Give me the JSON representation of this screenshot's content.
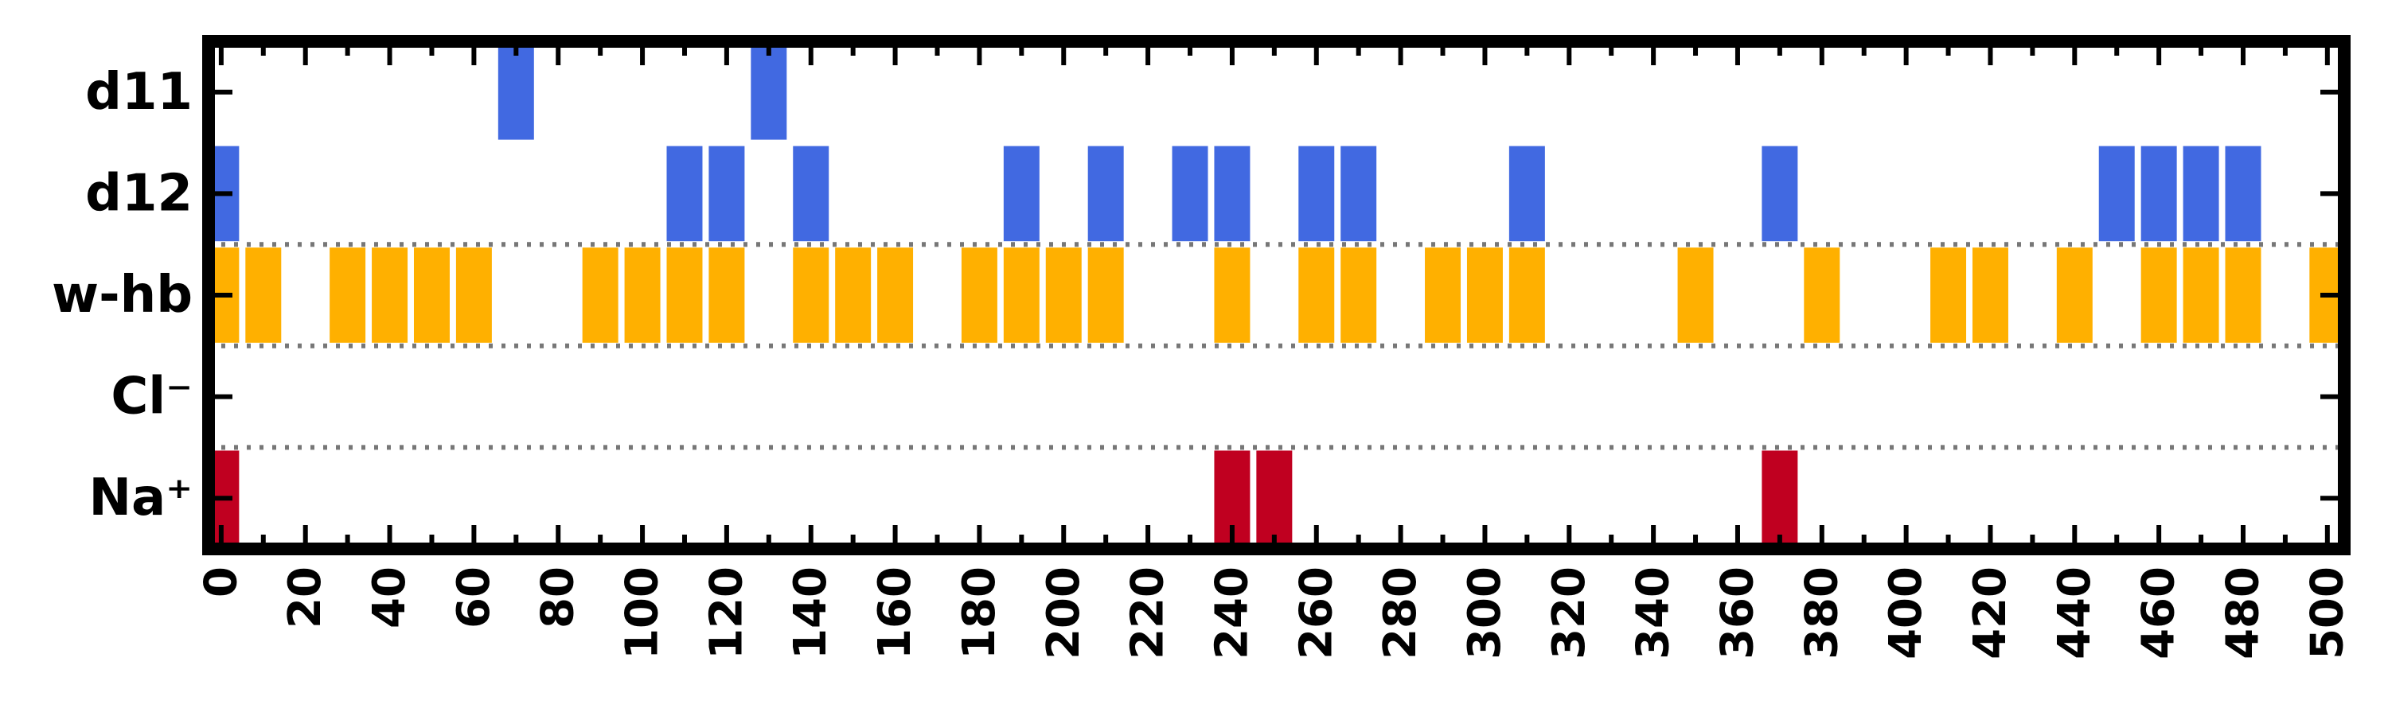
{
  "chart_data": {
    "type": "bar",
    "title": "",
    "xlabel": "",
    "ylabel": "",
    "xlim": [
      -3,
      504
    ],
    "x_ticks": [
      0,
      20,
      40,
      60,
      80,
      100,
      120,
      140,
      160,
      180,
      200,
      220,
      240,
      260,
      280,
      300,
      320,
      340,
      360,
      380,
      400,
      420,
      440,
      460,
      480,
      500
    ],
    "x_tick_labels": [
      "0",
      "20",
      "40",
      "60",
      "80",
      "100",
      "120",
      "140",
      "160",
      "180",
      "200",
      "220",
      "240",
      "260",
      "280",
      "300",
      "320",
      "340",
      "360",
      "380",
      "400",
      "420",
      "440",
      "460",
      "480",
      "500"
    ],
    "x_minor_ticks": [
      10,
      30,
      50,
      70,
      90,
      110,
      130,
      150,
      170,
      190,
      210,
      230,
      250,
      270,
      290,
      310,
      330,
      350,
      370,
      390,
      410,
      420,
      430,
      450,
      470,
      490
    ],
    "bar_width": 8.5,
    "categories": [
      "d11",
      "d12",
      "w-hb",
      "Cl⁻",
      "Na⁺"
    ],
    "separators_after": [
      "d12",
      "w-hb",
      "Cl⁻"
    ],
    "grid": false,
    "series": [
      {
        "category": "d11",
        "color": "#4169e1",
        "x": [
          70,
          130
        ]
      },
      {
        "category": "d12",
        "color": "#4169e1",
        "x": [
          0,
          110,
          120,
          140,
          190,
          210,
          230,
          240,
          260,
          270,
          310,
          370,
          450,
          460,
          470,
          480
        ]
      },
      {
        "category": "w-hb",
        "color": "#ffb000",
        "x": [
          0,
          10,
          30,
          40,
          50,
          60,
          90,
          100,
          110,
          120,
          140,
          150,
          160,
          180,
          190,
          200,
          210,
          240,
          260,
          270,
          290,
          300,
          310,
          350,
          380,
          410,
          420,
          440,
          460,
          470,
          480,
          500
        ]
      },
      {
        "category": "Cl⁻",
        "color": "#4169e1",
        "x": []
      },
      {
        "category": "Na⁺",
        "color": "#c00020",
        "x": [
          0,
          240,
          250,
          370
        ]
      }
    ]
  }
}
